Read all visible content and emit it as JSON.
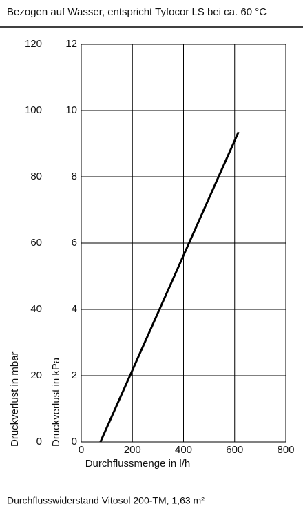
{
  "chart_data": {
    "type": "line",
    "title": "Bezogen auf Wasser, entspricht Tyfocor LS bei ca. 60 °C",
    "caption": "Durchflusswiderstand Vitosol 200-TM, 1,63 m²",
    "x_label": "Durchflussmenge in l/h",
    "y_label": "Druckverlust in kPa",
    "y2_label": "Druckverlust in mbar",
    "xlim": [
      0,
      800
    ],
    "xticks": [
      0,
      200,
      400,
      600,
      800
    ],
    "ylim": [
      0,
      12
    ],
    "yticks": [
      0,
      2,
      4,
      6,
      8,
      10,
      12
    ],
    "y2lim": [
      0,
      120
    ],
    "y2ticks": [
      0,
      20,
      40,
      60,
      80,
      100,
      120
    ],
    "grid": true,
    "series": [
      {
        "color": "#000000",
        "x": [
          75,
          615
        ],
        "values": [
          0,
          9.35
        ]
      }
    ]
  }
}
